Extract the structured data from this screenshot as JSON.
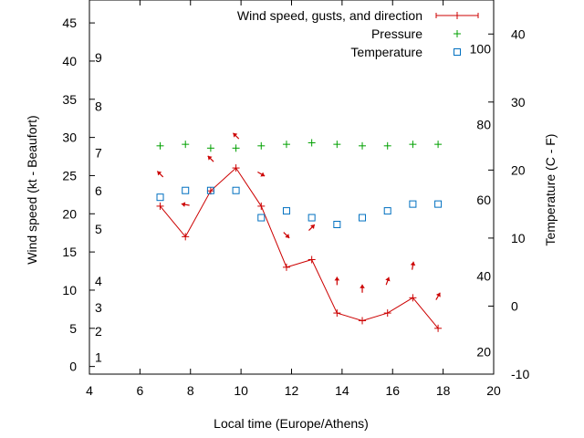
{
  "chart_data": {
    "type": "line",
    "xlabel": "Local time (Europe/Athens)",
    "ylabel": "Wind speed (kt - Beaufort)",
    "y2label": "Temperature (C - F)",
    "xlim": [
      4,
      20
    ],
    "ylim": [
      -1,
      48
    ],
    "y2lim": [
      -10,
      45
    ],
    "grid": false,
    "legend_position": "top-right",
    "x_ticks": [
      4,
      6,
      8,
      10,
      12,
      14,
      16,
      18,
      20
    ],
    "y_ticks": [
      0,
      5,
      10,
      15,
      20,
      25,
      30,
      35,
      40,
      45
    ],
    "y2_ticks": [
      -10,
      0,
      10,
      20,
      30,
      40
    ],
    "beaufort_labels": [
      {
        "label": "1",
        "y": 1.2
      },
      {
        "label": "2",
        "y": 4.6
      },
      {
        "label": "3",
        "y": 7.7
      },
      {
        "label": "4",
        "y": 11.2
      },
      {
        "label": "5",
        "y": 18.0
      },
      {
        "label": "6",
        "y": 23.0
      },
      {
        "label": "7",
        "y": 28.0
      },
      {
        "label": "8",
        "y": 34.1
      },
      {
        "label": "9",
        "y": 40.5
      }
    ],
    "fahrenheit_labels": [
      {
        "label": "20",
        "y2": -6.7
      },
      {
        "label": "40",
        "y2": 4.4
      },
      {
        "label": "60",
        "y2": 15.6
      },
      {
        "label": "80",
        "y2": 26.7
      },
      {
        "label": "100",
        "y2": 37.8
      }
    ],
    "series": [
      {
        "name": "Wind speed, gusts, and direction",
        "color": "#cc0000",
        "x": [
          6.8,
          7.8,
          8.8,
          9.8,
          10.8,
          11.8,
          12.8,
          13.8,
          14.8,
          15.8,
          16.8,
          17.8
        ],
        "y": [
          21,
          17,
          23,
          26,
          21,
          13,
          14,
          7,
          6,
          7,
          9,
          5
        ],
        "wind_from_deg": [
          135,
          100,
          135,
          135,
          300,
          315,
          225,
          180,
          180,
          200,
          190,
          210
        ]
      },
      {
        "name": "Pressure",
        "color": "#00a000",
        "x": [
          6.8,
          7.8,
          8.8,
          9.8,
          10.8,
          11.8,
          12.8,
          13.8,
          14.8,
          15.8,
          16.8,
          17.8
        ],
        "y": [
          28.9,
          29.1,
          28.6,
          28.6,
          28.9,
          29.1,
          29.3,
          29.1,
          28.9,
          28.9,
          29.1,
          29.1
        ]
      },
      {
        "name": "Temperature",
        "color": "#0070c0",
        "axis": "y2",
        "x": [
          6.8,
          7.8,
          8.8,
          9.8,
          10.8,
          11.8,
          12.8,
          13.8,
          14.8,
          15.8,
          16.8,
          17.8
        ],
        "y": [
          16,
          17,
          17,
          17,
          13,
          14,
          13,
          12,
          13,
          14,
          15,
          15
        ]
      }
    ]
  }
}
